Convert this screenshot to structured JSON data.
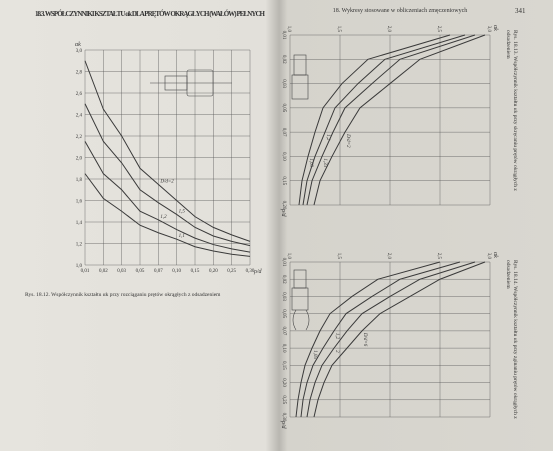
{
  "left_page": {
    "section_title": "18.3. WSPÓŁCZYNNIKI KSZTAŁTU αk DLA PRĘTÓW OKRĄGŁYCH (WAŁÓW) PEŁNYCH"
  },
  "right_page": {
    "running_head": "18. Wykresy stosowane w obliczeniach zmęczeniowych",
    "page_number": 341
  },
  "figures": [
    {
      "type": "line",
      "caption": "Rys. 18.12. Współczynnik kształtu αk przy rozciąganiu prętów okrągłych z odsadzeniem",
      "x_label": "ρ/d",
      "y_label": "αk",
      "color": "#3a3a3a",
      "grid": true,
      "x": [
        0.01,
        0.02,
        0.03,
        0.05,
        0.07,
        0.1,
        0.15,
        0.2,
        0.25,
        0.3
      ],
      "xlim": [
        0.01,
        0.3
      ],
      "xticks": [
        {
          "value": 0.01,
          "label": "0,01"
        },
        {
          "value": 0.02,
          "label": "0,02"
        },
        {
          "value": 0.03,
          "label": "0,03"
        },
        {
          "value": 0.05,
          "label": "0,05"
        },
        {
          "value": 0.07,
          "label": "0,07"
        },
        {
          "value": 0.1,
          "label": "0,10"
        },
        {
          "value": 0.15,
          "label": "0,15"
        },
        {
          "value": 0.2,
          "label": "0,20"
        },
        {
          "value": 0.25,
          "label": "0,25"
        },
        {
          "value": 0.3,
          "label": "0,30"
        }
      ],
      "ylim": [
        1,
        3
      ],
      "yticks": [
        {
          "value": 1,
          "label": "1,0"
        },
        {
          "value": 1.2,
          "label": "1,2"
        },
        {
          "value": 1.4,
          "label": "1,4"
        },
        {
          "value": 1.6,
          "label": "1,6"
        },
        {
          "value": 1.8,
          "label": "1,8"
        },
        {
          "value": 2,
          "label": "2,0"
        },
        {
          "value": 2.2,
          "label": "2,2"
        },
        {
          "value": 2.4,
          "label": "2,4"
        },
        {
          "value": 2.6,
          "label": "2,6"
        },
        {
          "value": 2.8,
          "label": "2,8"
        },
        {
          "value": 3,
          "label": "3,0"
        }
      ],
      "series": [
        {
          "name": "D/d=2",
          "values": [
            2.9,
            2.45,
            2.2,
            1.9,
            1.75,
            1.6,
            1.45,
            1.35,
            1.28,
            1.22
          ]
        },
        {
          "name": "1,5",
          "values": [
            2.5,
            2.15,
            1.95,
            1.7,
            1.58,
            1.47,
            1.35,
            1.27,
            1.22,
            1.18
          ]
        },
        {
          "name": "1,2",
          "values": [
            2.15,
            1.85,
            1.7,
            1.5,
            1.42,
            1.33,
            1.25,
            1.19,
            1.15,
            1.12
          ]
        },
        {
          "name": "1,1",
          "values": [
            1.85,
            1.62,
            1.5,
            1.37,
            1.3,
            1.24,
            1.17,
            1.13,
            1.1,
            1.08
          ]
        }
      ]
    },
    {
      "type": "line",
      "caption": "Rys. 18.13. Współczynnik kształtu αk przy skręcaniu prętów okrągłych z odsadzeniem",
      "x_label": "ρ/d",
      "y_label": "αk",
      "color": "#3a3a3a",
      "grid": true,
      "x": [
        0.01,
        0.02,
        0.03,
        0.05,
        0.07,
        0.1,
        0.15,
        0.2
      ],
      "xlim": [
        0.01,
        0.2
      ],
      "xticks": [
        {
          "value": 0.01,
          "label": "0,01"
        },
        {
          "value": 0.02,
          "label": "0,02"
        },
        {
          "value": 0.03,
          "label": "0,03"
        },
        {
          "value": 0.05,
          "label": "0,05"
        },
        {
          "value": 0.07,
          "label": "0,07"
        },
        {
          "value": 0.1,
          "label": "0,10"
        },
        {
          "value": 0.15,
          "label": "0,15"
        },
        {
          "value": 0.2,
          "label": "0,20"
        }
      ],
      "ylim": [
        1,
        3
      ],
      "yticks": [
        {
          "value": 1,
          "label": "1,0"
        },
        {
          "value": 1.5,
          "label": "1,5"
        },
        {
          "value": 2,
          "label": "2,0"
        },
        {
          "value": 2.5,
          "label": "2,5"
        },
        {
          "value": 3,
          "label": "3,0"
        }
      ],
      "series": [
        {
          "name": "D/d=2",
          "values": [
            2.95,
            2.3,
            2.0,
            1.7,
            1.55,
            1.42,
            1.3,
            1.24
          ]
        },
        {
          "name": "1,33",
          "values": [
            2.85,
            2.1,
            1.82,
            1.55,
            1.43,
            1.32,
            1.22,
            1.17
          ]
        },
        {
          "name": "1,2",
          "values": [
            2.75,
            1.95,
            1.68,
            1.45,
            1.35,
            1.25,
            1.17,
            1.13
          ]
        },
        {
          "name": "1,09",
          "values": [
            2.6,
            1.78,
            1.52,
            1.33,
            1.25,
            1.18,
            1.12,
            1.09
          ]
        }
      ]
    },
    {
      "type": "line",
      "caption": "Rys. 18.14. Współczynnik kształtu αk przy zginaniu prętów okrągłych z odsadzeniem",
      "x_label": "ρ/d",
      "y_label": "αk",
      "color": "#3a3a3a",
      "grid": true,
      "x": [
        0.01,
        0.02,
        0.03,
        0.05,
        0.07,
        0.1,
        0.15,
        0.2,
        0.25,
        0.3
      ],
      "xlim": [
        0.01,
        0.3
      ],
      "xticks": [
        {
          "value": 0.01,
          "label": "0,01"
        },
        {
          "value": 0.02,
          "label": "0,02"
        },
        {
          "value": 0.03,
          "label": "0,03"
        },
        {
          "value": 0.05,
          "label": "0,05"
        },
        {
          "value": 0.07,
          "label": "0,07"
        },
        {
          "value": 0.1,
          "label": "0,10"
        },
        {
          "value": 0.15,
          "label": "0,15"
        },
        {
          "value": 0.2,
          "label": "0,20"
        },
        {
          "value": 0.25,
          "label": "0,25"
        },
        {
          "value": 0.3,
          "label": "0,30"
        }
      ],
      "ylim": [
        1,
        3
      ],
      "yticks": [
        {
          "value": 1,
          "label": "1,0"
        },
        {
          "value": 1.5,
          "label": "1,5"
        },
        {
          "value": 2,
          "label": "2,0"
        },
        {
          "value": 2.5,
          "label": "2,5"
        },
        {
          "value": 3,
          "label": "3,0"
        }
      ],
      "series": [
        {
          "name": "D/d=6",
          "values": [
            2.95,
            2.5,
            2.2,
            1.9,
            1.72,
            1.57,
            1.42,
            1.34,
            1.28,
            1.24
          ]
        },
        {
          "name": "2",
          "values": [
            2.85,
            2.3,
            2.0,
            1.72,
            1.57,
            1.44,
            1.32,
            1.25,
            1.2,
            1.17
          ]
        },
        {
          "name": "1,2",
          "values": [
            2.7,
            2.1,
            1.82,
            1.56,
            1.44,
            1.33,
            1.23,
            1.17,
            1.13,
            1.11
          ]
        },
        {
          "name": "1,05",
          "values": [
            2.5,
            1.88,
            1.62,
            1.4,
            1.3,
            1.22,
            1.15,
            1.11,
            1.08,
            1.06
          ]
        }
      ]
    }
  ]
}
